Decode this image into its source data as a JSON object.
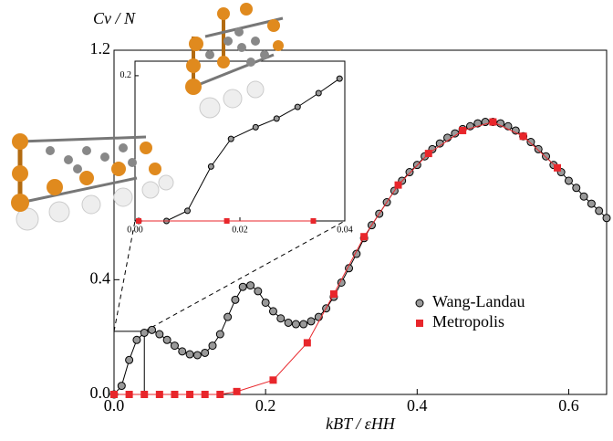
{
  "chart_data": [
    {
      "type": "line",
      "y_label": "Cv / N",
      "x_label": "kBT / εHH",
      "xlim": [
        0,
        0.65
      ],
      "ylim": [
        0,
        1.2
      ],
      "xticks": [
        {
          "value": 0,
          "label": "0.0"
        },
        0.2,
        0.4,
        0.6
      ],
      "yticks": [
        {
          "value": 0,
          "label": "0.0"
        },
        0.4,
        1.2
      ],
      "legend": "right",
      "series": [
        {
          "name": "Wang-Landau",
          "color": "#999999",
          "marker": "circle",
          "x": [
            0,
            0.01,
            0.02,
            0.03,
            0.04,
            0.05,
            0.06,
            0.07,
            0.08,
            0.09,
            0.1,
            0.11,
            0.12,
            0.13,
            0.14,
            0.15,
            0.16,
            0.17,
            0.18,
            0.19,
            0.2,
            0.21,
            0.22,
            0.23,
            0.24,
            0.25,
            0.26,
            0.27,
            0.28,
            0.29,
            0.3,
            0.31,
            0.32,
            0.33,
            0.34,
            0.35,
            0.36,
            0.37,
            0.38,
            0.39,
            0.4,
            0.41,
            0.42,
            0.43,
            0.44,
            0.45,
            0.46,
            0.47,
            0.48,
            0.49,
            0.5,
            0.51,
            0.52,
            0.53,
            0.54,
            0.55,
            0.56,
            0.57,
            0.58,
            0.59,
            0.6,
            0.61,
            0.62,
            0.63,
            0.64,
            0.65
          ],
          "values": [
            0,
            0.03,
            0.12,
            0.19,
            0.215,
            0.225,
            0.21,
            0.19,
            0.17,
            0.15,
            0.14,
            0.137,
            0.145,
            0.17,
            0.21,
            0.27,
            0.33,
            0.375,
            0.38,
            0.36,
            0.32,
            0.29,
            0.265,
            0.25,
            0.245,
            0.245,
            0.255,
            0.27,
            0.3,
            0.34,
            0.39,
            0.44,
            0.49,
            0.545,
            0.59,
            0.63,
            0.67,
            0.71,
            0.745,
            0.775,
            0.8,
            0.83,
            0.855,
            0.875,
            0.895,
            0.91,
            0.925,
            0.935,
            0.945,
            0.95,
            0.95,
            0.945,
            0.935,
            0.92,
            0.9,
            0.88,
            0.855,
            0.83,
            0.8,
            0.775,
            0.745,
            0.72,
            0.69,
            0.665,
            0.64,
            0.615
          ]
        },
        {
          "name": "Metropolis",
          "color": "#e8262b",
          "marker": "square",
          "x": [
            0,
            0.02,
            0.04,
            0.06,
            0.08,
            0.1,
            0.12,
            0.14,
            0.162,
            0.21,
            0.255,
            0.29,
            0.33,
            0.375,
            0.415,
            0.46,
            0.5,
            0.54,
            0.585
          ],
          "values": [
            0,
            0,
            0,
            0,
            0,
            0,
            0,
            0,
            0.01,
            0.05,
            0.18,
            0.35,
            0.55,
            0.73,
            0.84,
            0.92,
            0.95,
            0.9,
            0.79
          ]
        }
      ]
    },
    {
      "type": "line",
      "xlim": [
        0,
        0.04
      ],
      "ylim": [
        0,
        0.22
      ],
      "xticks": [
        {
          "value": 0,
          "label": "0.00"
        },
        0.02,
        0.04
      ],
      "yticks": [
        0.2
      ],
      "series": [
        {
          "color": "#999999",
          "marker": "circle",
          "x": [
            0.0007,
            0.006,
            0.01,
            0.0145,
            0.0183,
            0.023,
            0.027,
            0.031,
            0.035,
            0.039
          ],
          "values": [
            0,
            0,
            0.014,
            0.075,
            0.113,
            0.129,
            0.141,
            0.157,
            0.176,
            0.196
          ]
        },
        {
          "color": "#e8262b",
          "marker": "square",
          "x": [
            0.0007,
            0.0175,
            0.034
          ],
          "values": [
            0,
            0,
            0
          ]
        }
      ]
    }
  ]
}
